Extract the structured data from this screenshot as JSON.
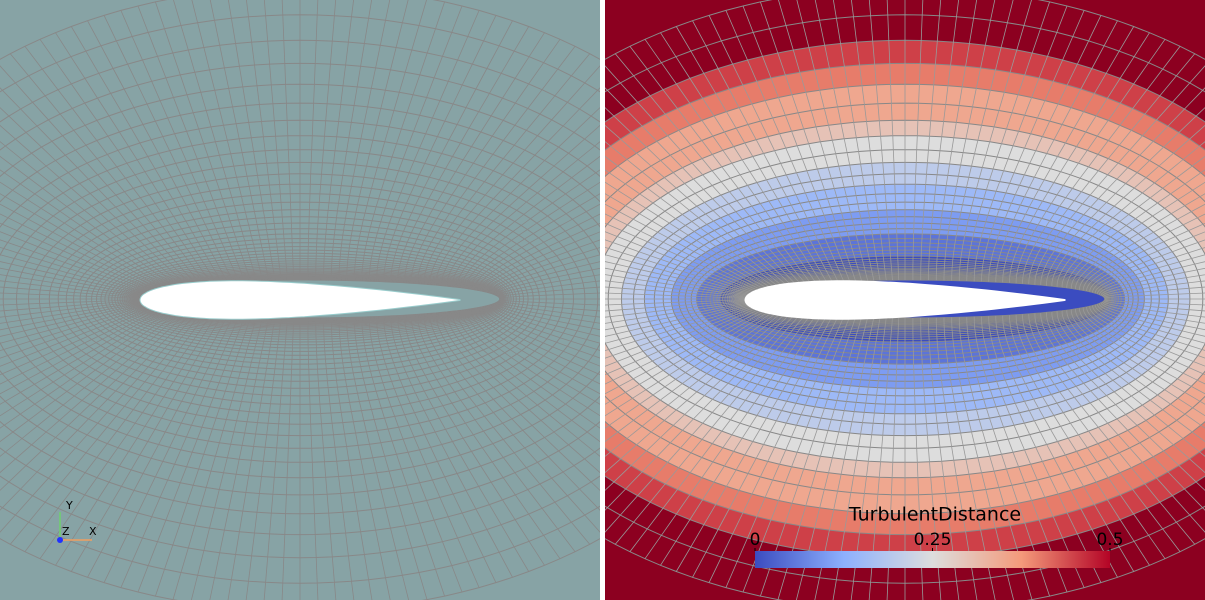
{
  "left_view": {
    "orientation_axes": {
      "y_label": "Y",
      "z_label": "Z",
      "x_label": "X"
    }
  },
  "right_view": {
    "color_legend": {
      "title": "TurbulentDistance",
      "range": [
        0,
        0.5
      ],
      "ticks": [
        0,
        0.25,
        0.5
      ]
    }
  }
}
